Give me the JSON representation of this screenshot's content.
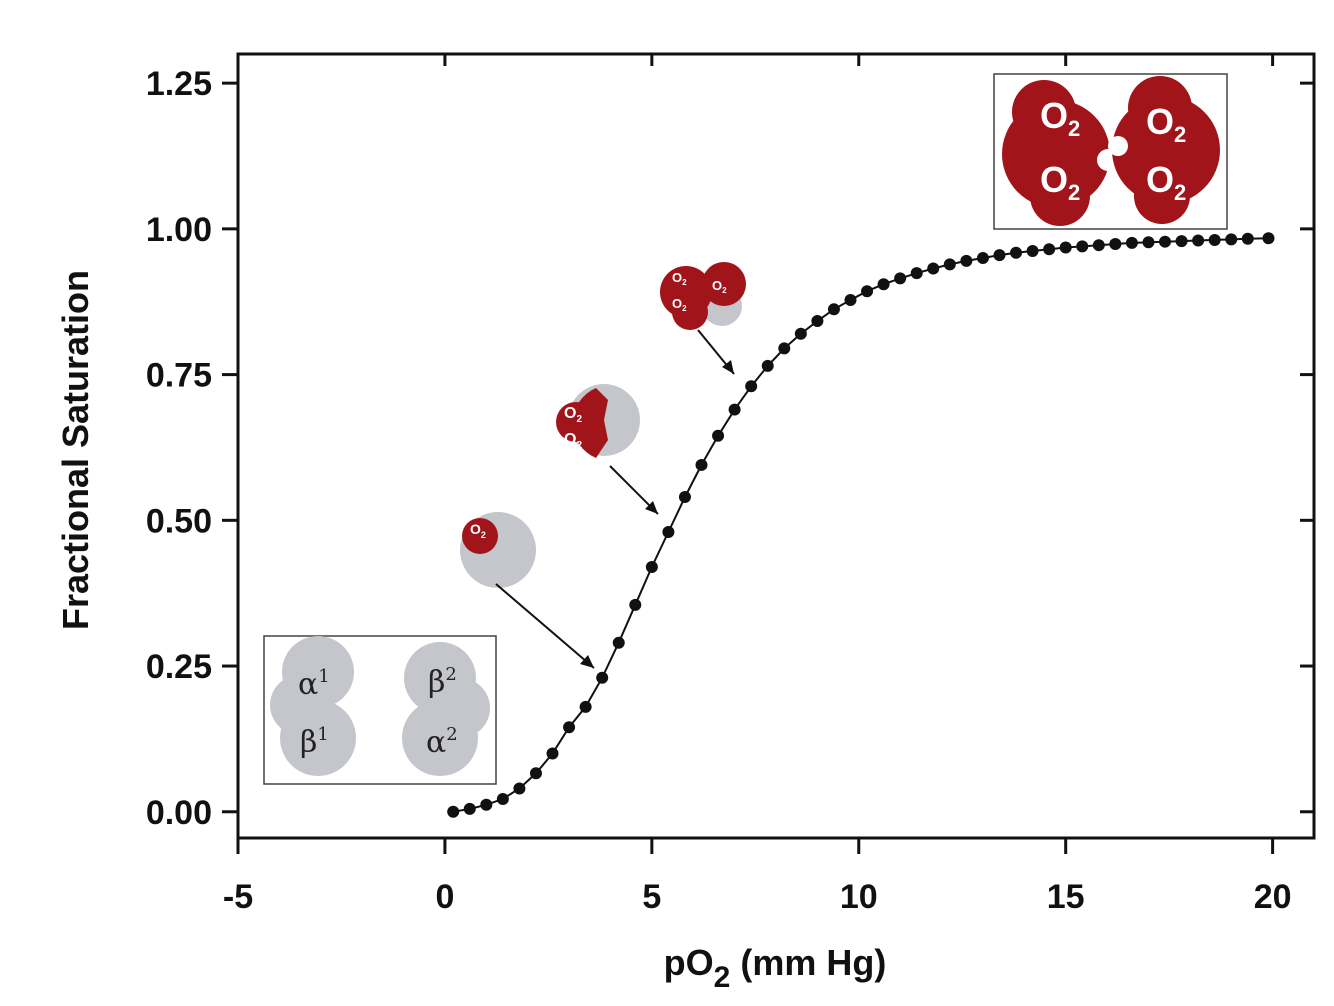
{
  "chart_data": {
    "type": "scatter",
    "title": "",
    "xlabel": "pO2 (mm Hg)",
    "xlabel_main": "pO",
    "xlabel_sub": "2",
    "xlabel_unit": " (mm Hg)",
    "ylabel": "Fractional Saturation",
    "xlim": [
      -5,
      21
    ],
    "ylim": [
      -0.045,
      1.3
    ],
    "x_ticks": [
      -5,
      0,
      5,
      10,
      15,
      20
    ],
    "x_tick_labels": [
      "-5",
      "0",
      "5",
      "10",
      "15",
      "20"
    ],
    "y_ticks": [
      0,
      0.25,
      0.5,
      0.75,
      1.0,
      1.25
    ],
    "y_tick_labels": [
      "0.00",
      "0.25",
      "0.50",
      "0.75",
      "1.00",
      "1.25"
    ],
    "grid": false,
    "series": [
      {
        "fit_line": true,
        "x": [
          0.2,
          0.6,
          1.0,
          1.4,
          1.8,
          2.2,
          2.6,
          3.0,
          3.4,
          3.8,
          4.2,
          4.6,
          5.0,
          5.4,
          5.8,
          6.2,
          6.6,
          7.0,
          7.4,
          7.8,
          8.2,
          8.6,
          9.0,
          9.4,
          9.8,
          10.2,
          10.6,
          11.0,
          11.4,
          11.8,
          12.2,
          12.6,
          13.0,
          13.4,
          13.8,
          14.2,
          14.6,
          15.0,
          15.4,
          15.8,
          16.2,
          16.6,
          17.0,
          17.4,
          17.8,
          18.2,
          18.6,
          19.0,
          19.4,
          19.9
        ],
        "y": [
          0.0,
          0.005,
          0.012,
          0.022,
          0.04,
          0.066,
          0.1,
          0.145,
          0.18,
          0.23,
          0.29,
          0.355,
          0.42,
          0.48,
          0.54,
          0.595,
          0.645,
          0.69,
          0.73,
          0.765,
          0.795,
          0.82,
          0.842,
          0.862,
          0.878,
          0.893,
          0.905,
          0.915,
          0.924,
          0.932,
          0.939,
          0.945,
          0.95,
          0.955,
          0.959,
          0.962,
          0.965,
          0.968,
          0.97,
          0.972,
          0.974,
          0.976,
          0.977,
          0.978,
          0.979,
          0.98,
          0.981,
          0.982,
          0.983,
          0.984
        ]
      }
    ],
    "annotations": {
      "deoxy_labels": [
        "α",
        "1",
        "β",
        "2",
        "β",
        "1",
        "α",
        "2"
      ],
      "oxy_label": "O",
      "oxy_sub": "2"
    },
    "colors": {
      "points": "#111111",
      "axis": "#111111",
      "oxy": "#a0141a",
      "deoxy": "#c4c6cc"
    }
  }
}
